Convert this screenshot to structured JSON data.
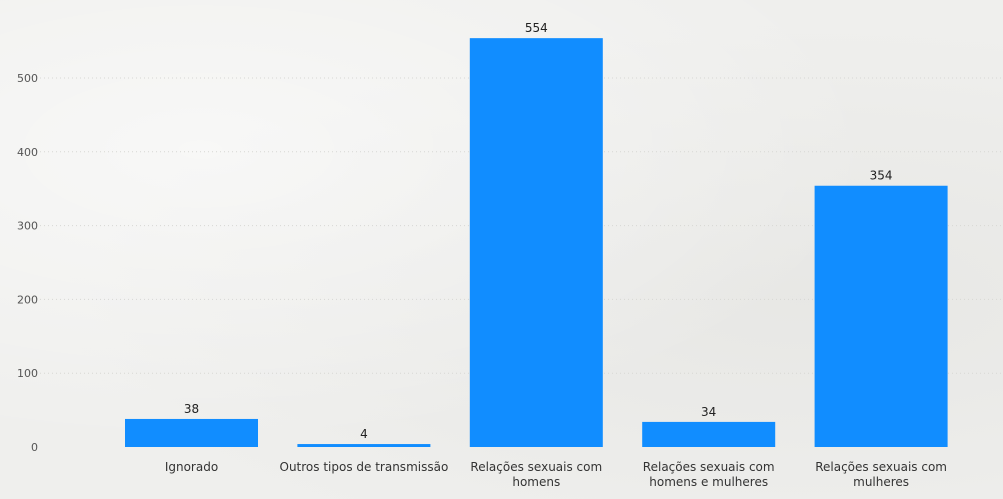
{
  "chart_data": {
    "type": "bar",
    "title": "",
    "xlabel": "",
    "ylabel": "",
    "categories": [
      "Ignorado",
      "Outros tipos de transmissão",
      "Relações sexuais com homens",
      "Relações sexuais com homens e mulheres",
      "Relações sexuais com mulheres"
    ],
    "category_lines": [
      [
        "Ignorado"
      ],
      [
        "Outros tipos de transmissão"
      ],
      [
        "Relações sexuais com",
        "homens"
      ],
      [
        "Relações sexuais com",
        "homens e mulheres"
      ],
      [
        "Relações sexuais com",
        "mulheres"
      ]
    ],
    "values": [
      38,
      4,
      554,
      34,
      354
    ],
    "data_labels": [
      "38",
      "4",
      "554",
      "34",
      "354"
    ],
    "ylim": [
      0,
      580
    ],
    "yticks": [
      0,
      100,
      200,
      300,
      400,
      500
    ],
    "ytick_labels": [
      "0",
      "100",
      "200",
      "300",
      "400",
      "500"
    ],
    "grid": true,
    "legend": "none",
    "bar_color": "#118dff"
  }
}
